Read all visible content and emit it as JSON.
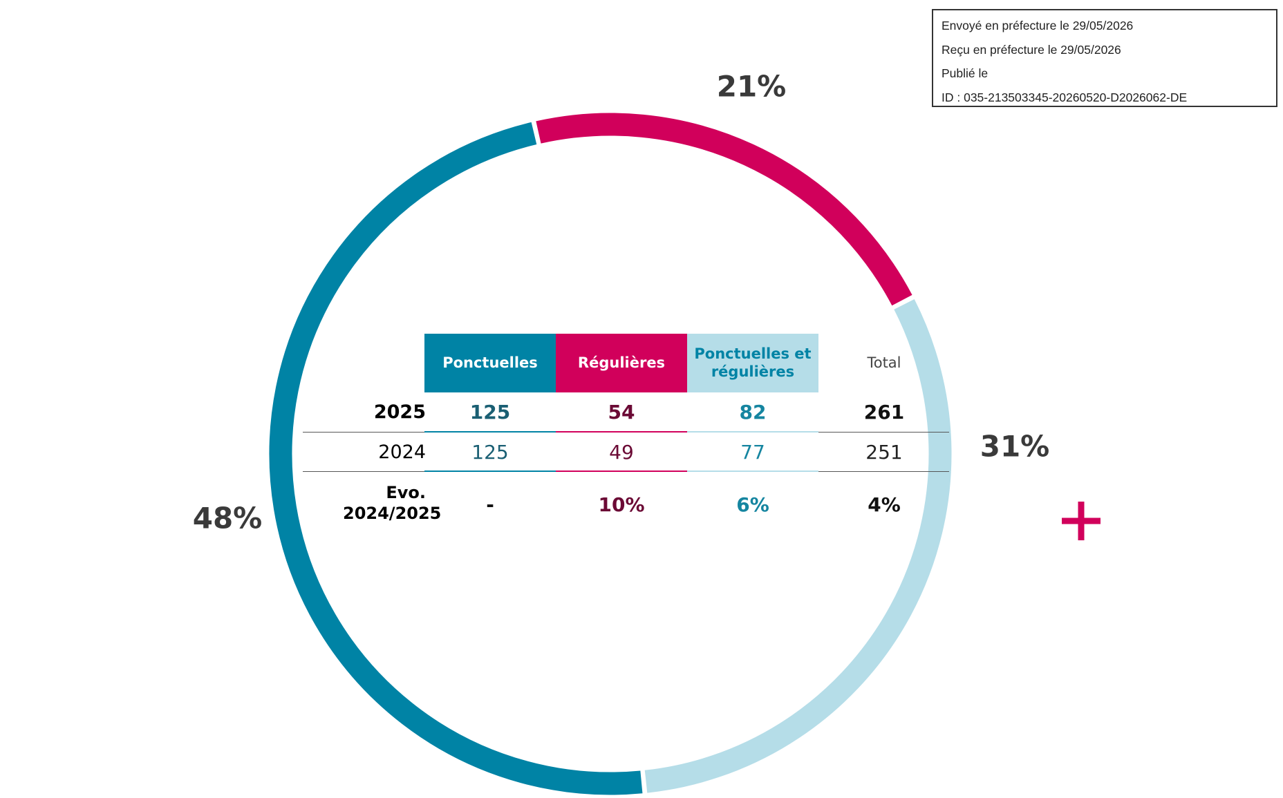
{
  "chart_data": {
    "type": "donut",
    "categories": [
      "Ponctuelles",
      "Régulières",
      "Ponctuelles et régulières"
    ],
    "values": [
      48,
      21,
      31
    ],
    "value_labels": [
      "48%",
      "21%",
      "31%"
    ],
    "colors": [
      "#0083a5",
      "#d1005b",
      "#b5dde8"
    ]
  },
  "table": {
    "header": [
      "Ponctuelles",
      "Régulières",
      "Ponctuelles et régulières",
      "Total"
    ],
    "rows": [
      [
        "2025",
        "125",
        "54",
        "82",
        "261"
      ],
      [
        "2024",
        "125",
        "49",
        "77",
        "251"
      ],
      [
        "Evo. 2024/2025",
        "-",
        "10%",
        "6%",
        "4%"
      ]
    ]
  },
  "stamp": {
    "lines": [
      "Envoyé en préfecture le 29/05/2026",
      "Reçu en préfecture le 29/05/2026",
      "Publié le",
      "ID : 035-213503345-20260520-D2026062-DE"
    ]
  }
}
